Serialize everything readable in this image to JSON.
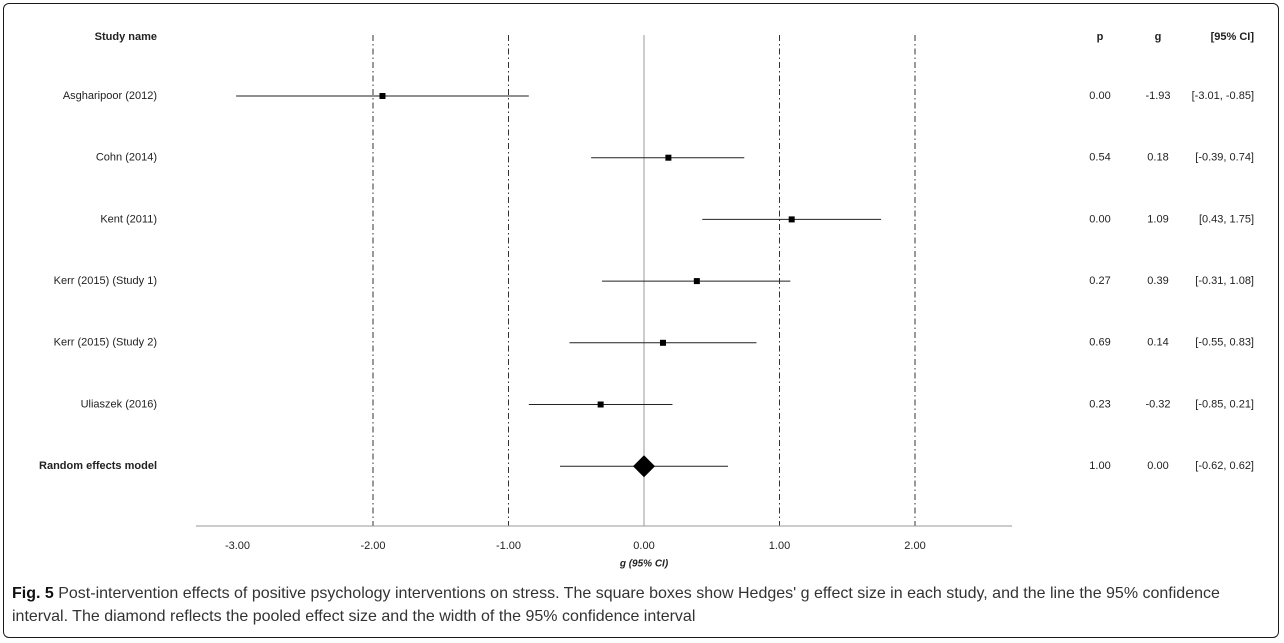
{
  "chart_data": {
    "type": "forest",
    "columns": {
      "study": "Study name",
      "p": "p",
      "g": "g",
      "ci": "[95% CI]"
    },
    "studies": [
      {
        "name": "Asgharipoor (2012)",
        "g": -1.93,
        "lower": -3.01,
        "upper": -0.85,
        "p_text": "0.00",
        "g_text": "-1.93",
        "ci_text": "[-3.01, -0.85]",
        "pooled": false
      },
      {
        "name": "Cohn (2014)",
        "g": 0.18,
        "lower": -0.39,
        "upper": 0.74,
        "p_text": "0.54",
        "g_text": "0.18",
        "ci_text": "[-0.39, 0.74]",
        "pooled": false
      },
      {
        "name": "Kent (2011)",
        "g": 1.09,
        "lower": 0.43,
        "upper": 1.75,
        "p_text": "0.00",
        "g_text": "1.09",
        "ci_text": "[0.43, 1.75]",
        "pooled": false
      },
      {
        "name": "Kerr (2015) (Study 1)",
        "g": 0.39,
        "lower": -0.31,
        "upper": 1.08,
        "p_text": "0.27",
        "g_text": "0.39",
        "ci_text": "[-0.31, 1.08]",
        "pooled": false
      },
      {
        "name": "Kerr (2015) (Study 2)",
        "g": 0.14,
        "lower": -0.55,
        "upper": 0.83,
        "p_text": "0.69",
        "g_text": "0.14",
        "ci_text": "[-0.55, 0.83]",
        "pooled": false
      },
      {
        "name": "Uliaszek (2016)",
        "g": -0.32,
        "lower": -0.85,
        "upper": 0.21,
        "p_text": "0.23",
        "g_text": "-0.32",
        "ci_text": "[-0.85, 0.21]",
        "pooled": false
      },
      {
        "name": "Random effects model",
        "g": 0.0,
        "lower": -0.62,
        "upper": 0.62,
        "p_text": "1.00",
        "g_text": "0.00",
        "ci_text": "[-0.62, 0.62]",
        "pooled": true
      }
    ],
    "xaxis": {
      "label": "g (95% CI)",
      "ticks": [
        -3,
        -2,
        -1,
        0,
        1,
        2
      ],
      "tick_labels": [
        "-3.00",
        "-2.00",
        "-1.00",
        "0.00",
        "1.00",
        "2.00"
      ],
      "range": [
        -3.5,
        2.75
      ],
      "reference_lines_dashdot": [
        -2,
        -1,
        1,
        2
      ],
      "reference_line_solid": 0
    }
  },
  "caption": {
    "label": "Fig. 5",
    "text": " Post-intervention effects of positive psychology interventions on stress. The square boxes show Hedges' g effect size in each study, and the line the 95% confidence interval. The diamond reflects the pooled effect size and the width of the 95% confidence interval"
  }
}
